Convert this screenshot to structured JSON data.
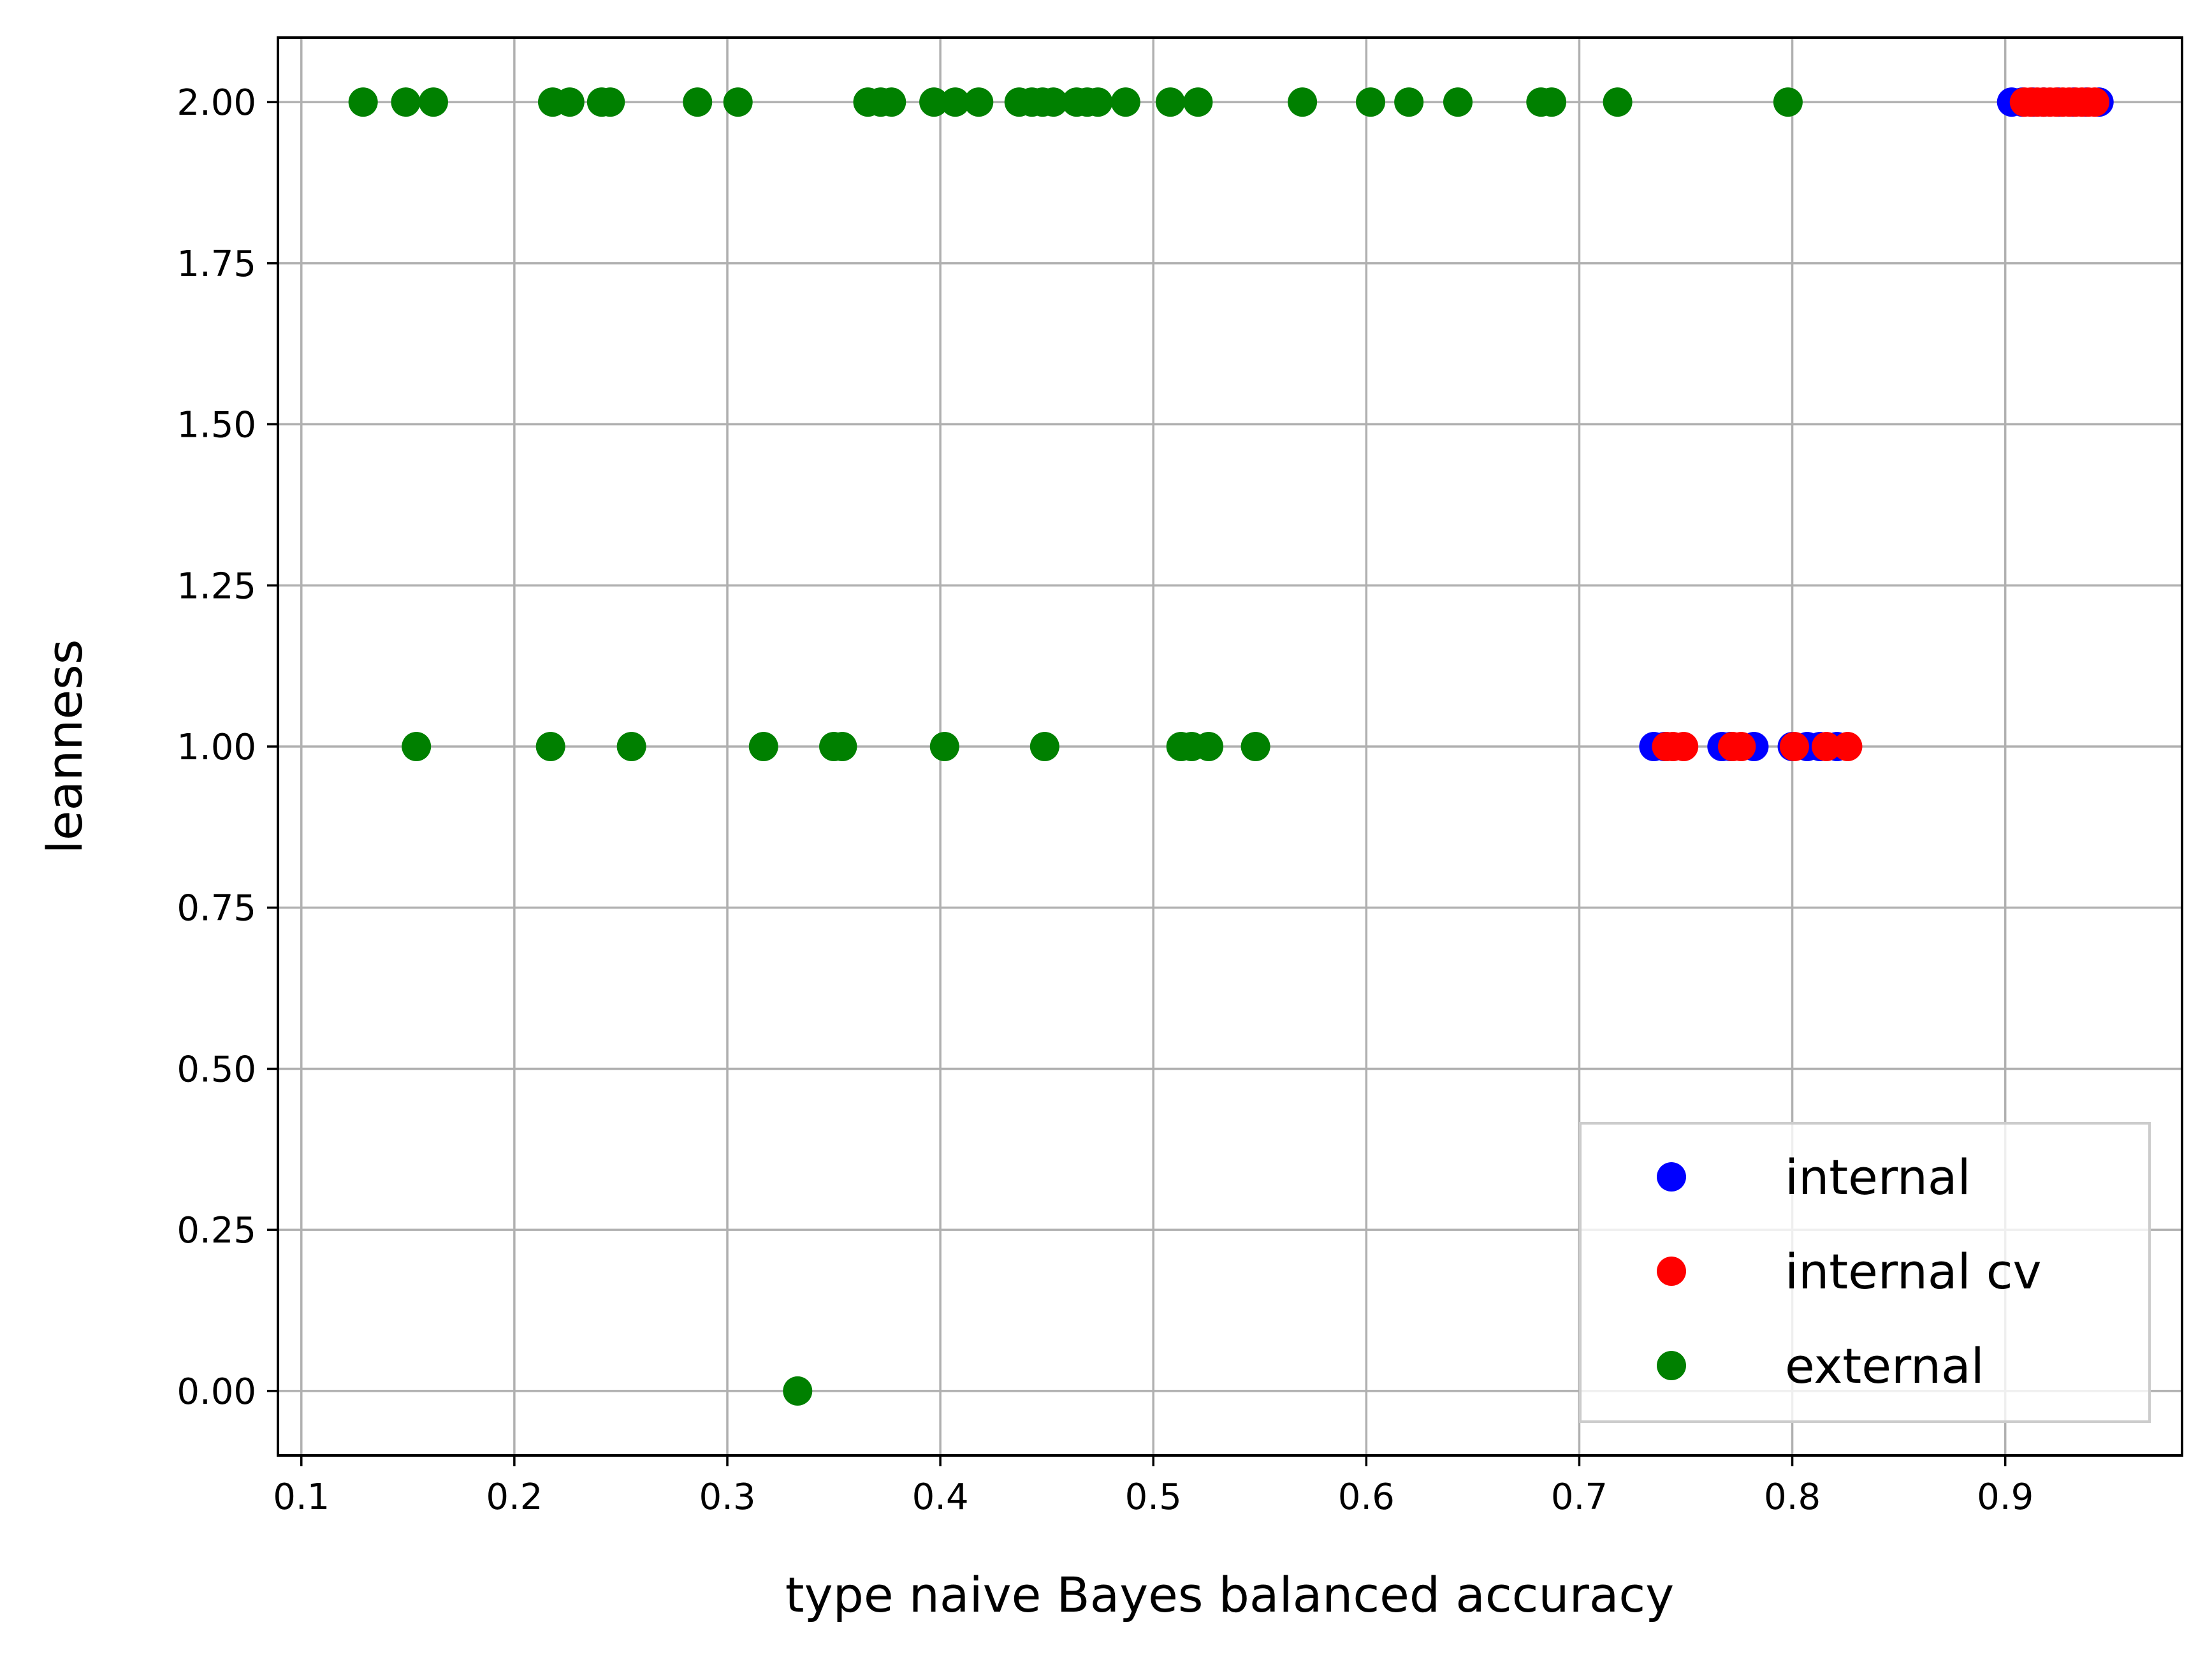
{
  "chart_data": {
    "type": "scatter",
    "title": "",
    "xlabel": "type naive Bayes balanced accuracy",
    "ylabel": "leanness",
    "xlim": [
      0.089,
      0.983
    ],
    "ylim": [
      -0.1,
      2.1
    ],
    "xticks": [
      {
        "value": 0.1,
        "label": "0.1"
      },
      {
        "value": 0.2,
        "label": "0.2"
      },
      {
        "value": 0.3,
        "label": "0.3"
      },
      {
        "value": 0.4,
        "label": "0.4"
      },
      {
        "value": 0.5,
        "label": "0.5"
      },
      {
        "value": 0.6,
        "label": "0.6"
      },
      {
        "value": 0.7,
        "label": "0.7"
      },
      {
        "value": 0.8,
        "label": "0.8"
      },
      {
        "value": 0.9,
        "label": "0.9"
      }
    ],
    "yticks": [
      {
        "value": 0.0,
        "label": "0.00"
      },
      {
        "value": 0.25,
        "label": "0.25"
      },
      {
        "value": 0.5,
        "label": "0.50"
      },
      {
        "value": 0.75,
        "label": "0.75"
      },
      {
        "value": 1.0,
        "label": "1.00"
      },
      {
        "value": 1.25,
        "label": "1.25"
      },
      {
        "value": 1.5,
        "label": "1.50"
      },
      {
        "value": 1.75,
        "label": "1.75"
      },
      {
        "value": 2.0,
        "label": "2.00"
      }
    ],
    "grid": true,
    "legend_position": "lower-right",
    "series": [
      {
        "name": "internal",
        "color": "#0000ff",
        "points": [
          [
            0.903,
            2
          ],
          [
            0.908,
            2
          ],
          [
            0.913,
            2
          ],
          [
            0.918,
            2
          ],
          [
            0.925,
            2
          ],
          [
            0.932,
            2
          ],
          [
            0.938,
            2
          ],
          [
            0.944,
            2
          ],
          [
            0.735,
            1
          ],
          [
            0.74,
            1
          ],
          [
            0.767,
            1
          ],
          [
            0.771,
            1
          ],
          [
            0.782,
            1
          ],
          [
            0.8,
            1
          ],
          [
            0.807,
            1
          ],
          [
            0.813,
            1
          ],
          [
            0.821,
            1
          ]
        ]
      },
      {
        "name": "internal cv",
        "color": "#ff0000",
        "points": [
          [
            0.909,
            2
          ],
          [
            0.912,
            2
          ],
          [
            0.915,
            2
          ],
          [
            0.918,
            2
          ],
          [
            0.921,
            2
          ],
          [
            0.924,
            2
          ],
          [
            0.927,
            2
          ],
          [
            0.93,
            2
          ],
          [
            0.933,
            2
          ],
          [
            0.936,
            2
          ],
          [
            0.939,
            2
          ],
          [
            0.942,
            2
          ],
          [
            0.741,
            1
          ],
          [
            0.744,
            1
          ],
          [
            0.749,
            1
          ],
          [
            0.772,
            1
          ],
          [
            0.776,
            1
          ],
          [
            0.801,
            1
          ],
          [
            0.816,
            1
          ],
          [
            0.826,
            1
          ]
        ]
      },
      {
        "name": "external",
        "color": "#008000",
        "points": [
          [
            0.129,
            2
          ],
          [
            0.149,
            2
          ],
          [
            0.162,
            2
          ],
          [
            0.218,
            2
          ],
          [
            0.226,
            2
          ],
          [
            0.241,
            2
          ],
          [
            0.245,
            2
          ],
          [
            0.286,
            2
          ],
          [
            0.305,
            2
          ],
          [
            0.366,
            2
          ],
          [
            0.372,
            2
          ],
          [
            0.377,
            2
          ],
          [
            0.397,
            2
          ],
          [
            0.407,
            2
          ],
          [
            0.418,
            2
          ],
          [
            0.437,
            2
          ],
          [
            0.443,
            2
          ],
          [
            0.448,
            2
          ],
          [
            0.453,
            2
          ],
          [
            0.464,
            2
          ],
          [
            0.469,
            2
          ],
          [
            0.474,
            2
          ],
          [
            0.487,
            2
          ],
          [
            0.508,
            2
          ],
          [
            0.521,
            2
          ],
          [
            0.57,
            2
          ],
          [
            0.602,
            2
          ],
          [
            0.62,
            2
          ],
          [
            0.643,
            2
          ],
          [
            0.682,
            2
          ],
          [
            0.687,
            2
          ],
          [
            0.718,
            2
          ],
          [
            0.798,
            2
          ],
          [
            0.154,
            1
          ],
          [
            0.217,
            1
          ],
          [
            0.255,
            1
          ],
          [
            0.317,
            1
          ],
          [
            0.35,
            1
          ],
          [
            0.354,
            1
          ],
          [
            0.402,
            1
          ],
          [
            0.449,
            1
          ],
          [
            0.513,
            1
          ],
          [
            0.518,
            1
          ],
          [
            0.526,
            1
          ],
          [
            0.548,
            1
          ],
          [
            0.333,
            0
          ]
        ]
      }
    ]
  }
}
